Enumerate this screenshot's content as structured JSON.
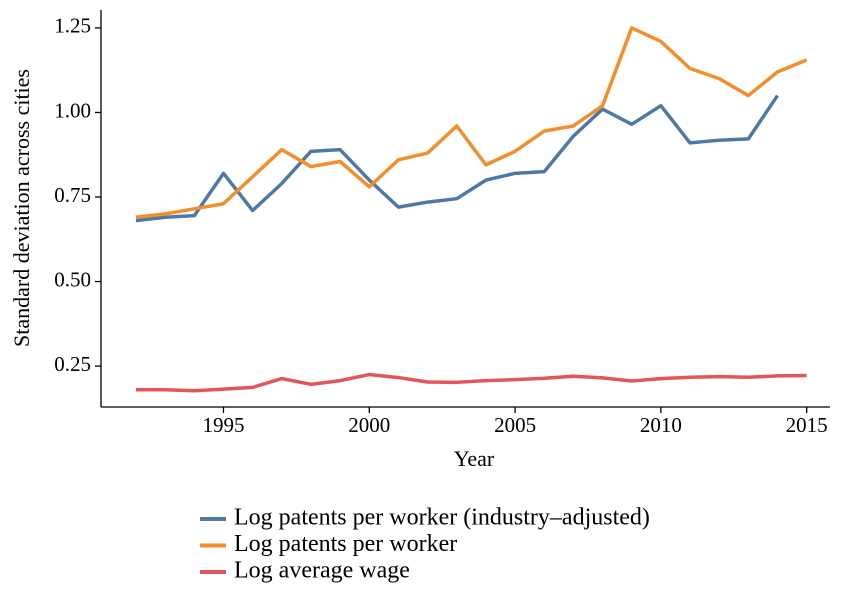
{
  "chart_data": {
    "type": "line",
    "xlabel": "Year",
    "ylabel": "Standard deviation across cities",
    "x": [
      1992,
      1993,
      1994,
      1995,
      1996,
      1997,
      1998,
      1999,
      2000,
      2001,
      2002,
      2003,
      2004,
      2005,
      2006,
      2007,
      2008,
      2009,
      2010,
      2011,
      2012,
      2013,
      2014,
      2015
    ],
    "series": [
      {
        "name": "Log patents per worker (industry–adjusted)",
        "color": "#4e79a7",
        "values": [
          0.68,
          0.69,
          0.695,
          0.82,
          0.71,
          0.79,
          0.885,
          0.89,
          0.8,
          0.72,
          0.735,
          0.745,
          0.8,
          0.82,
          0.825,
          0.93,
          1.01,
          0.965,
          1.02,
          0.91,
          0.918,
          0.922,
          1.05,
          null
        ]
      },
      {
        "name": "Log patents per worker",
        "color": "#f28e2b",
        "values": [
          0.69,
          0.7,
          0.715,
          0.73,
          0.81,
          0.89,
          0.84,
          0.855,
          0.78,
          0.86,
          0.88,
          0.96,
          0.845,
          0.885,
          0.945,
          0.96,
          1.02,
          1.25,
          1.21,
          1.13,
          1.1,
          1.05,
          1.12,
          1.155
        ]
      },
      {
        "name": "Log average wage",
        "color": "#e15759",
        "values": [
          0.18,
          0.18,
          0.177,
          0.182,
          0.187,
          0.213,
          0.196,
          0.207,
          0.225,
          0.216,
          0.203,
          0.202,
          0.207,
          0.21,
          0.214,
          0.22,
          0.215,
          0.206,
          0.213,
          0.217,
          0.219,
          0.217,
          0.221,
          0.222
        ]
      }
    ],
    "xlim": [
      1990.8,
      2015.8
    ],
    "xticks": [
      1995,
      2000,
      2005,
      2010,
      2015
    ],
    "ylim": [
      0.129,
      1.303
    ],
    "yticks": [
      0.25,
      {
        "value": 0.5,
        "label": "0.50"
      },
      0.75,
      {
        "value": 1.0,
        "label": "1.00"
      },
      1.25
    ],
    "grid": false,
    "legend": "bottom"
  }
}
